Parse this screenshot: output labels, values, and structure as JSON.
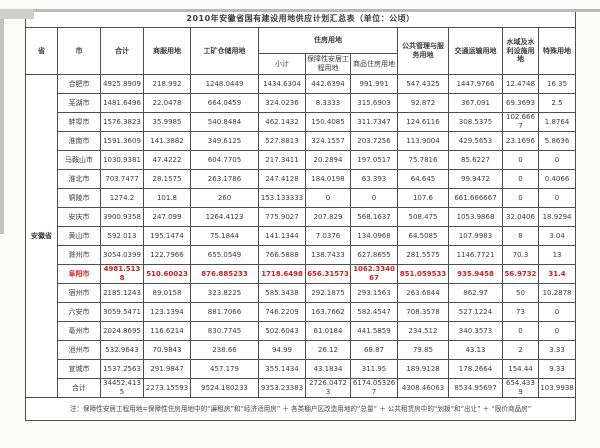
{
  "title": "2010年安徽省国有建设用地供应计划汇总表（单位：公顷）",
  "note": "注：保障性安居工程用地=保障性住房用地中的“廉租房”和“经济适用房” ＋ 各类棚户区改造用地的“总量” ＋ 公共租赁房中的“划拨”和“出让” ＋ “限价商品房”",
  "colors": {
    "highlight": "#cc2020",
    "border": "#4e4e4e"
  },
  "table": {
    "headers": {
      "province": "省",
      "city": "市",
      "total": "合计",
      "commercial": "商服用地",
      "industrial": "工矿仓储用地",
      "housing_group": "住房用地",
      "housing_subtotal": "小计",
      "affordable": "保障性安居工程用地",
      "commodity": "商品住房用地",
      "public": "公共管理与服务用地",
      "transport": "交通运输用地",
      "water": "水域及水利设施用地",
      "special": "特殊用地"
    },
    "province_label": "安徽省",
    "rows": [
      {
        "city": "合肥市",
        "highlight": false,
        "values": [
          "4925.8909",
          "218.992",
          "1248.0449",
          "1434.6304",
          "442.6394",
          "991.991",
          "547.4325",
          "1447.9766",
          "12.4748",
          "16.35"
        ]
      },
      {
        "city": "芜湖市",
        "highlight": false,
        "values": [
          "1481.6496",
          "22.0478",
          "664.0459",
          "324.0236",
          "8.3333",
          "315.6903",
          "92.872",
          "367.091",
          "69.3693",
          "2.5"
        ]
      },
      {
        "city": "蚌埠市",
        "highlight": false,
        "values": [
          "1576.3823",
          "35.9985",
          "540.8484",
          "462.1432",
          "150.4085",
          "311.7347",
          "124.6116",
          "308.5375",
          "102.6667",
          "1.8764"
        ]
      },
      {
        "city": "淮南市",
        "highlight": false,
        "values": [
          "1591.3609",
          "141.3882",
          "349.6125",
          "527.8813",
          "324.1557",
          "203.7256",
          "113.9004",
          "429.5653",
          "23.1696",
          "5.8636"
        ]
      },
      {
        "city": "马鞍山市",
        "highlight": false,
        "values": [
          "1030.9381",
          "47.4222",
          "604.7705",
          "217.3411",
          "20.2894",
          "197.0517",
          "75.7816",
          "85.6227",
          "0",
          "0"
        ]
      },
      {
        "city": "淮北市",
        "highlight": false,
        "values": [
          "703.7477",
          "28.1575",
          "263.1786",
          "247.4128",
          "184.0198",
          "63.393",
          "64.645",
          "99.9472",
          "0",
          "0.4066"
        ]
      },
      {
        "city": "铜陵市",
        "highlight": false,
        "values": [
          "1274.2",
          "101.8",
          "260",
          "153.133333",
          "0",
          "0",
          "107.6",
          "661.666667",
          "0",
          "0"
        ]
      },
      {
        "city": "安庆市",
        "highlight": false,
        "values": [
          "3900.9358",
          "247.099",
          "1264.4123",
          "775.9027",
          "207.829",
          "568.1637",
          "508.475",
          "1053.9868",
          "32.0406",
          "18.9294"
        ]
      },
      {
        "city": "黄山市",
        "highlight": false,
        "values": [
          "592.013",
          "195.1474",
          "75.1844",
          "141.1344",
          "7.0376",
          "134.0968",
          "64.5085",
          "107.9983",
          "8",
          "3.04"
        ]
      },
      {
        "city": "滁州市",
        "highlight": false,
        "values": [
          "3054.0399",
          "122.7966",
          "655.0549",
          "766.5888",
          "138.7433",
          "627.8655",
          "281.5575",
          "1146.7721",
          "70.3",
          "13"
        ]
      },
      {
        "city": "阜阳市",
        "highlight": true,
        "values": [
          "4981.5138",
          "510.60023",
          "876.885233",
          "1718.6498",
          "656.31573",
          "1062.334067",
          "851.059533",
          "935.9458",
          "56.9732",
          "31.4"
        ]
      },
      {
        "city": "宿州市",
        "highlight": false,
        "values": [
          "2185.1243",
          "89.0158",
          "323.8225",
          "585.3438",
          "292.1875",
          "293.1563",
          "263.6844",
          "862.97",
          "50",
          "10.2878"
        ]
      },
      {
        "city": "六安市",
        "highlight": false,
        "values": [
          "3059.5471",
          "123.1394",
          "881.7066",
          "746.2209",
          "163.7662",
          "582.4547",
          "708.3578",
          "527.1224",
          "73",
          "0"
        ]
      },
      {
        "city": "亳州市",
        "highlight": false,
        "values": [
          "2024.8695",
          "116.6214",
          "830.7745",
          "502.6043",
          "61.0184",
          "441.5859",
          "234.512",
          "340.3573",
          "0",
          "0"
        ]
      },
      {
        "city": "池州市",
        "highlight": false,
        "values": [
          "532.9643",
          "70.9843",
          "238.66",
          "94.99",
          "26.12",
          "68.87",
          "79.85",
          "43.13",
          "2",
          "3.33"
        ]
      },
      {
        "city": "宣城市",
        "highlight": false,
        "values": [
          "1537.2563",
          "291.9847",
          "457.179",
          "355.1434",
          "43.1834",
          "311.95",
          "189.9128",
          "178.2664",
          "154.44",
          "9.33"
        ]
      },
      {
        "city": "合计",
        "highlight": false,
        "values": [
          "34452.4135",
          "2273.15593",
          "9524.180233",
          "9353.23383",
          "2726.04723",
          "6174.053267",
          "4308.46063",
          "8534.95697",
          "654.4339",
          "103.9938"
        ]
      }
    ]
  }
}
